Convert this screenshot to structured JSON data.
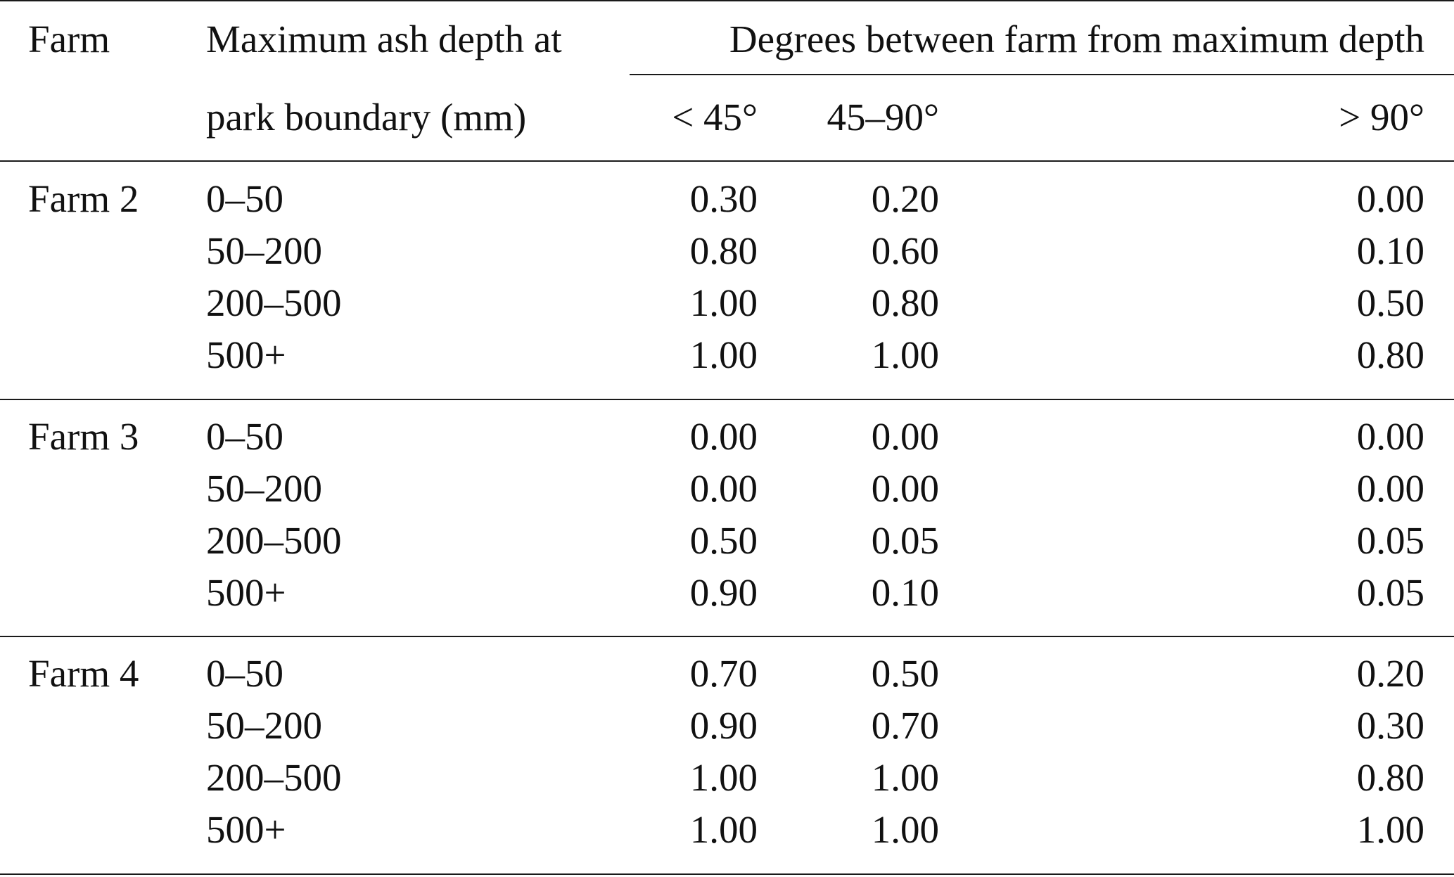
{
  "table": {
    "headers": {
      "farm": "Farm",
      "depth_line1": "Maximum ash depth at",
      "depth_line2": "park boundary (mm)",
      "degrees_group": "Degrees between farm from maximum depth",
      "col_lt45": "< 45°",
      "col_45to90": "45–90°",
      "col_gt90": "> 90°"
    },
    "groups": [
      {
        "farm": "Farm 2",
        "rows": [
          {
            "depth": "0–50",
            "lt45": "0.30",
            "d45to90": "0.20",
            "gt90": "0.00"
          },
          {
            "depth": "50–200",
            "lt45": "0.80",
            "d45to90": "0.60",
            "gt90": "0.10"
          },
          {
            "depth": "200–500",
            "lt45": "1.00",
            "d45to90": "0.80",
            "gt90": "0.50"
          },
          {
            "depth": "500+",
            "lt45": "1.00",
            "d45to90": "1.00",
            "gt90": "0.80"
          }
        ]
      },
      {
        "farm": "Farm 3",
        "rows": [
          {
            "depth": "0–50",
            "lt45": "0.00",
            "d45to90": "0.00",
            "gt90": "0.00"
          },
          {
            "depth": "50–200",
            "lt45": "0.00",
            "d45to90": "0.00",
            "gt90": "0.00"
          },
          {
            "depth": "200–500",
            "lt45": "0.50",
            "d45to90": "0.05",
            "gt90": "0.05"
          },
          {
            "depth": "500+",
            "lt45": "0.90",
            "d45to90": "0.10",
            "gt90": "0.05"
          }
        ]
      },
      {
        "farm": "Farm 4",
        "rows": [
          {
            "depth": "0–50",
            "lt45": "0.70",
            "d45to90": "0.50",
            "gt90": "0.20"
          },
          {
            "depth": "50–200",
            "lt45": "0.90",
            "d45to90": "0.70",
            "gt90": "0.30"
          },
          {
            "depth": "200–500",
            "lt45": "1.00",
            "d45to90": "1.00",
            "gt90": "0.80"
          },
          {
            "depth": "500+",
            "lt45": "1.00",
            "d45to90": "1.00",
            "gt90": "1.00"
          }
        ]
      }
    ]
  }
}
